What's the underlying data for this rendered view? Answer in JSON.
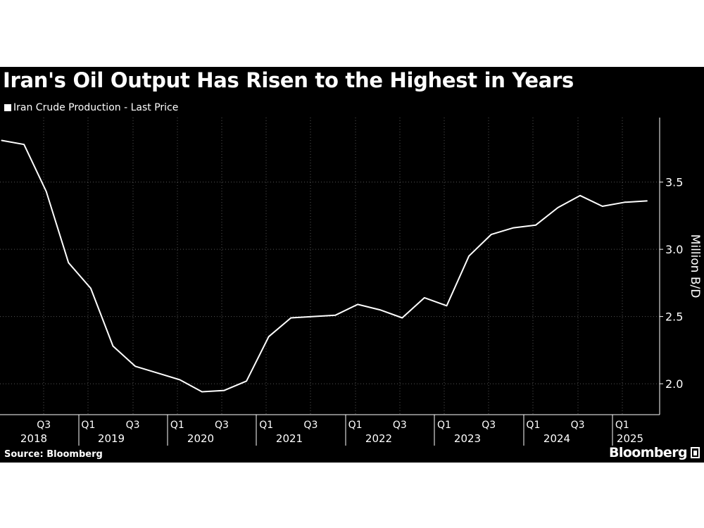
{
  "chart": {
    "title": "Iran's Oil Output Has Risen to the Highest in Years",
    "legend_label": "Iran Crude Production - Last Price",
    "source": "Source: Bloomberg",
    "brand": "Bloomberg",
    "line_color": "#ffffff",
    "background": "#000000",
    "grid_color": "#555555"
  },
  "chart_data": {
    "type": "line",
    "title": "Iran's Oil Output Has Risen to the Highest in Years",
    "ylabel": "Million B/D",
    "ylim": [
      1.77,
      3.98
    ],
    "yticks": [
      2.0,
      2.5,
      3.0,
      3.5
    ],
    "grid": "vertical dotted at quarters, horizontal dotted at y ticks",
    "legend_position": "top-left",
    "x_quarter_labels": [
      {
        "q": "2018-Q3",
        "label": "Q3"
      },
      {
        "q": "2019-Q1",
        "label": "Q1"
      },
      {
        "q": "2019-Q3",
        "label": "Q3"
      },
      {
        "q": "2020-Q1",
        "label": "Q1"
      },
      {
        "q": "2020-Q3",
        "label": "Q3"
      },
      {
        "q": "2021-Q1",
        "label": "Q1"
      },
      {
        "q": "2021-Q3",
        "label": "Q3"
      },
      {
        "q": "2022-Q1",
        "label": "Q1"
      },
      {
        "q": "2022-Q3",
        "label": "Q3"
      },
      {
        "q": "2023-Q1",
        "label": "Q1"
      },
      {
        "q": "2023-Q3",
        "label": "Q3"
      },
      {
        "q": "2024-Q1",
        "label": "Q1"
      },
      {
        "q": "2024-Q3",
        "label": "Q3"
      },
      {
        "q": "2025-Q1",
        "label": "Q1"
      }
    ],
    "x_year_labels": [
      "2018",
      "2019",
      "2020",
      "2021",
      "2022",
      "2023",
      "2024",
      "2025"
    ],
    "series": [
      {
        "name": "Iran Crude Production - Last Price",
        "points": [
          {
            "q": "2018-Q1",
            "y": 3.81
          },
          {
            "q": "2018-Q2",
            "y": 3.78
          },
          {
            "q": "2018-Q3",
            "y": 3.43
          },
          {
            "q": "2018-Q4",
            "y": 2.9
          },
          {
            "q": "2019-Q1",
            "y": 2.71
          },
          {
            "q": "2019-Q2",
            "y": 2.28
          },
          {
            "q": "2019-Q3",
            "y": 2.13
          },
          {
            "q": "2019-Q4",
            "y": 2.08
          },
          {
            "q": "2020-Q1",
            "y": 2.03
          },
          {
            "q": "2020-Q2",
            "y": 1.94
          },
          {
            "q": "2020-Q3",
            "y": 1.95
          },
          {
            "q": "2020-Q4",
            "y": 2.02
          },
          {
            "q": "2021-Q1",
            "y": 2.35
          },
          {
            "q": "2021-Q2",
            "y": 2.49
          },
          {
            "q": "2021-Q3",
            "y": 2.5
          },
          {
            "q": "2021-Q4",
            "y": 2.51
          },
          {
            "q": "2022-Q1",
            "y": 2.59
          },
          {
            "q": "2022-Q2",
            "y": 2.55
          },
          {
            "q": "2022-Q3",
            "y": 2.49
          },
          {
            "q": "2022-Q4",
            "y": 2.64
          },
          {
            "q": "2023-Q1",
            "y": 2.58
          },
          {
            "q": "2023-Q2",
            "y": 2.95
          },
          {
            "q": "2023-Q3",
            "y": 3.11
          },
          {
            "q": "2023-Q4",
            "y": 3.16
          },
          {
            "q": "2024-Q1",
            "y": 3.18
          },
          {
            "q": "2024-Q2",
            "y": 3.31
          },
          {
            "q": "2024-Q3",
            "y": 3.4
          },
          {
            "q": "2024-Q4",
            "y": 3.32
          },
          {
            "q": "2025-Q1",
            "y": 3.35
          },
          {
            "q": "2025-Q2",
            "y": 3.36
          }
        ]
      }
    ]
  }
}
